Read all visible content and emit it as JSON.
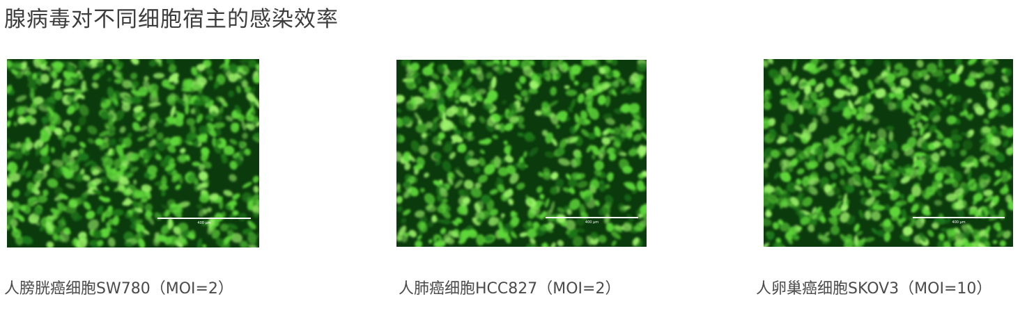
{
  "title": "腺病毒对不同细胞宿主的感染效率",
  "panels": [
    {
      "caption": "人膀胱癌细胞SW780（MOI=2）",
      "image_alt": "green fluorescence microscopy of SW780 cells",
      "scale_bar_label": "400 μm",
      "fill_fraction": 0.72
    },
    {
      "caption": "人肺癌细胞HCC827（MOI=2）",
      "image_alt": "green fluorescence microscopy of HCC827 cells",
      "scale_bar_label": "400 μm",
      "fill_fraction": 0.62
    },
    {
      "caption": "人卵巢癌细胞SKOV3（MOI=10）",
      "image_alt": "green fluorescence microscopy of SKOV3 cells",
      "scale_bar_label": "400 μm",
      "fill_fraction": 0.68
    }
  ],
  "colors": {
    "background": "#ffffff",
    "micro_dark": "#0b3a0c",
    "micro_mid": "#1f7a1a",
    "micro_bright": "#5fd83a",
    "micro_highlight": "#9cf26a",
    "scale_bar": "#ffffff",
    "text": "#444444"
  }
}
